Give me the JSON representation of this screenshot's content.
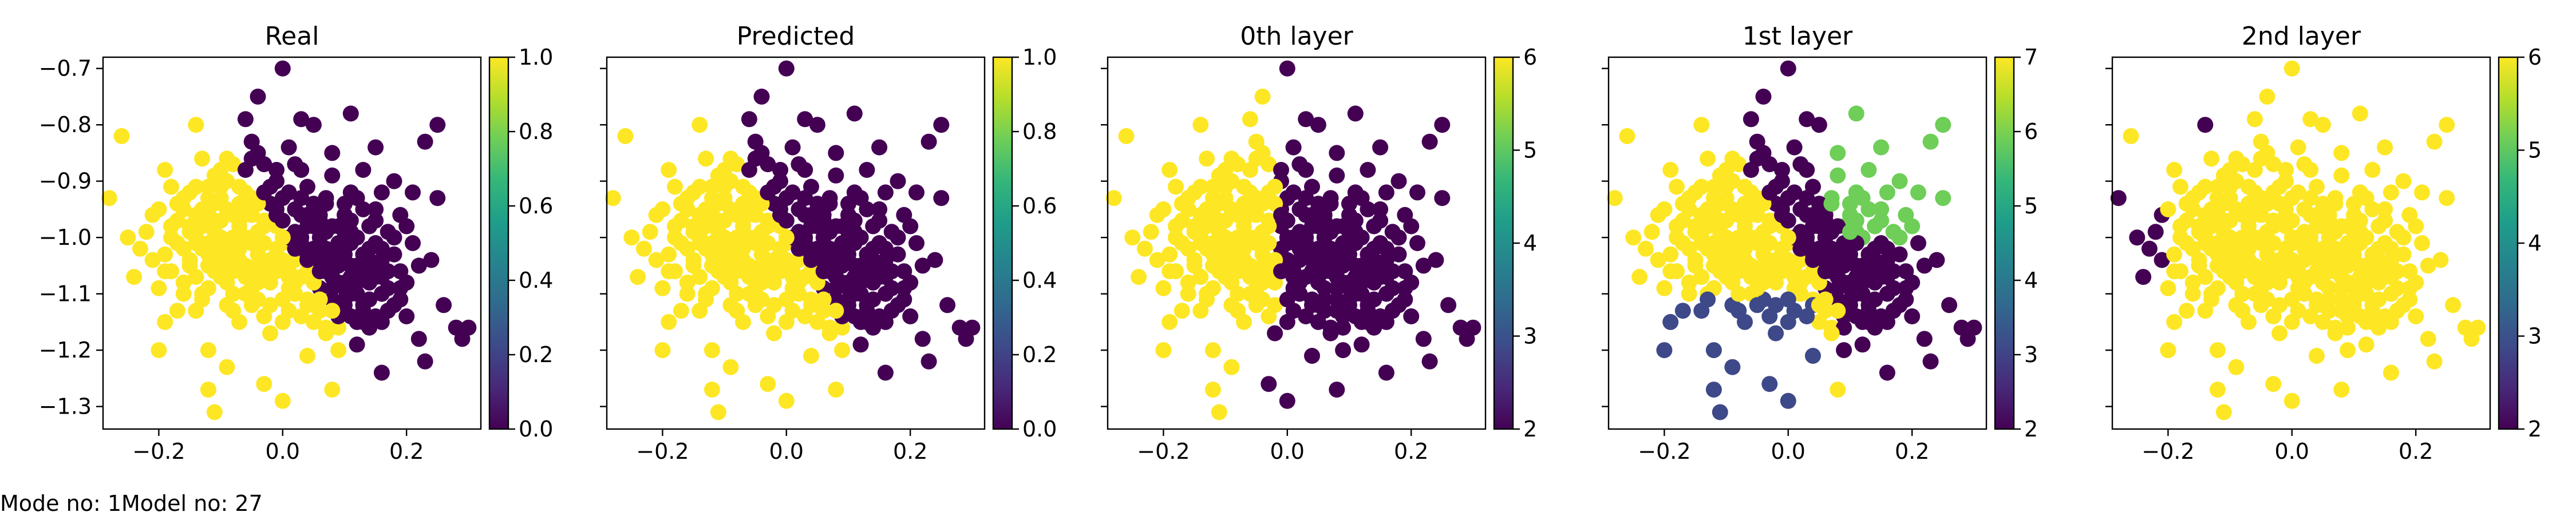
{
  "footer": {
    "mode": "Mode no: 1",
    "model": "Model no: 27"
  },
  "colors": {
    "viridis": [
      "#440154",
      "#482878",
      "#3e4989",
      "#31688e",
      "#26828e",
      "#1f9e89",
      "#35b779",
      "#6ece58",
      "#b5de2b",
      "#fde725"
    ]
  },
  "chart_data": [
    {
      "type": "scatter",
      "title": "Real",
      "xlim": [
        -0.29,
        0.32
      ],
      "ylim": [
        -1.34,
        -0.68
      ],
      "xticks": [
        -0.2,
        0.0,
        0.2
      ],
      "xtick_labels": [
        "−0.2",
        "0.0",
        "0.2"
      ],
      "yticks": [
        -0.7,
        -0.8,
        -0.9,
        -1.0,
        -1.1,
        -1.2,
        -1.3
      ],
      "ytick_labels": [
        "−0.7",
        "−0.8",
        "−0.9",
        "−1.0",
        "−1.1",
        "−1.2",
        "−1.3"
      ],
      "colorbar": {
        "range": [
          0,
          1
        ],
        "ticks": [
          0.0,
          0.2,
          0.4,
          0.6,
          0.8,
          1.0
        ],
        "tick_labels": [
          "0.0",
          "0.2",
          "0.4",
          "0.6",
          "0.8",
          "1.0"
        ]
      },
      "mode": "binary",
      "grid": false,
      "legend": "none"
    },
    {
      "type": "scatter",
      "title": "Predicted",
      "xlim": [
        -0.29,
        0.32
      ],
      "ylim": [
        -1.34,
        -0.68
      ],
      "xticks": [
        -0.2,
        0.0,
        0.2
      ],
      "xtick_labels": [
        "−0.2",
        "0.0",
        "0.2"
      ],
      "yticks": [
        -0.7,
        -0.8,
        -0.9,
        -1.0,
        -1.1,
        -1.2,
        -1.3
      ],
      "ytick_labels": [],
      "colorbar": {
        "range": [
          0,
          1
        ],
        "ticks": [
          0.0,
          0.2,
          0.4,
          0.6,
          0.8,
          1.0
        ],
        "tick_labels": [
          "0.0",
          "0.2",
          "0.4",
          "0.6",
          "0.8",
          "1.0"
        ]
      },
      "mode": "binary",
      "grid": false,
      "legend": "none"
    },
    {
      "type": "scatter",
      "title": "0th layer",
      "xlim": [
        -0.29,
        0.32
      ],
      "ylim": [
        -1.34,
        -0.68
      ],
      "xticks": [
        -0.2,
        0.0,
        0.2
      ],
      "xtick_labels": [
        "−0.2",
        "0.0",
        "0.2"
      ],
      "yticks": [
        -0.7,
        -0.8,
        -0.9,
        -1.0,
        -1.1,
        -1.2,
        -1.3
      ],
      "ytick_labels": [],
      "colorbar": {
        "range": [
          2,
          6
        ],
        "ticks": [
          2,
          3,
          4,
          5,
          6
        ],
        "tick_labels": [
          "2",
          "3",
          "4",
          "5",
          "6"
        ]
      },
      "mode": "layer0",
      "grid": false,
      "legend": "none"
    },
    {
      "type": "scatter",
      "title": "1st layer",
      "xlim": [
        -0.29,
        0.32
      ],
      "ylim": [
        -1.34,
        -0.68
      ],
      "xticks": [
        -0.2,
        0.0,
        0.2
      ],
      "xtick_labels": [
        "−0.2",
        "0.0",
        "0.2"
      ],
      "yticks": [
        -0.7,
        -0.8,
        -0.9,
        -1.0,
        -1.1,
        -1.2,
        -1.3
      ],
      "ytick_labels": [],
      "colorbar": {
        "range": [
          2,
          7
        ],
        "ticks": [
          2,
          3,
          4,
          5,
          6,
          7
        ],
        "tick_labels": [
          "2",
          "3",
          "4",
          "5",
          "6",
          "7"
        ]
      },
      "mode": "layer1",
      "grid": false,
      "legend": "none"
    },
    {
      "type": "scatter",
      "title": "2nd layer",
      "xlim": [
        -0.29,
        0.32
      ],
      "ylim": [
        -1.34,
        -0.68
      ],
      "xticks": [
        -0.2,
        0.0,
        0.2
      ],
      "xtick_labels": [
        "−0.2",
        "0.0",
        "0.2"
      ],
      "yticks": [
        -0.7,
        -0.8,
        -0.9,
        -1.0,
        -1.1,
        -1.2,
        -1.3
      ],
      "ytick_labels": [],
      "colorbar": {
        "range": [
          2,
          6
        ],
        "ticks": [
          2,
          3,
          4,
          5,
          6
        ],
        "tick_labels": [
          "2",
          "3",
          "4",
          "5",
          "6"
        ]
      },
      "mode": "layer2",
      "grid": false,
      "legend": "none"
    }
  ],
  "points": [
    [
      -0.0,
      -0.7
    ],
    [
      -0.04,
      -0.75
    ],
    [
      0.11,
      -0.78
    ],
    [
      0.05,
      -0.8
    ],
    [
      -0.14,
      -0.8
    ],
    [
      0.25,
      -0.8
    ],
    [
      -0.26,
      -0.82
    ],
    [
      0.23,
      -0.83
    ],
    [
      0.15,
      -0.84
    ],
    [
      -0.05,
      -0.86
    ],
    [
      0.02,
      -0.87
    ],
    [
      -0.1,
      -0.88
    ],
    [
      0.08,
      -0.89
    ],
    [
      0.18,
      -0.9
    ],
    [
      -0.18,
      -0.91
    ],
    [
      0.11,
      -0.92
    ],
    [
      0.21,
      -0.92
    ],
    [
      -0.28,
      -0.93
    ],
    [
      0.0,
      -0.93
    ],
    [
      0.25,
      -0.93
    ],
    [
      -0.06,
      -0.95
    ],
    [
      0.15,
      -0.95
    ],
    [
      -0.21,
      -0.96
    ],
    [
      0.06,
      -0.97
    ],
    [
      -0.15,
      -0.98
    ],
    [
      0.2,
      -0.98
    ],
    [
      0.11,
      -0.99
    ],
    [
      -0.25,
      -1.0
    ],
    [
      0.0,
      -1.01
    ],
    [
      0.16,
      -1.02
    ],
    [
      -0.08,
      -1.03
    ],
    [
      0.24,
      -1.04
    ],
    [
      0.06,
      -1.05
    ],
    [
      -0.19,
      -1.06
    ],
    [
      0.12,
      -1.07
    ],
    [
      -0.04,
      -1.08
    ],
    [
      0.19,
      -1.09
    ],
    [
      -0.13,
      -1.1
    ],
    [
      0.04,
      -1.11
    ],
    [
      0.26,
      -1.12
    ],
    [
      -0.08,
      -1.13
    ],
    [
      0.15,
      -1.14
    ],
    [
      -0.19,
      -1.15
    ],
    [
      0.07,
      -1.16
    ],
    [
      0.28,
      -1.16
    ],
    [
      -0.02,
      -1.17
    ],
    [
      0.22,
      -1.18
    ],
    [
      0.12,
      -1.19
    ],
    [
      -0.12,
      -1.2
    ],
    [
      -0.2,
      -1.2
    ],
    [
      0.04,
      -1.21
    ],
    [
      0.23,
      -1.22
    ],
    [
      -0.09,
      -1.23
    ],
    [
      0.16,
      -1.24
    ],
    [
      -0.03,
      -1.26
    ],
    [
      0.08,
      -1.27
    ],
    [
      -0.12,
      -1.27
    ],
    [
      0.0,
      -1.29
    ],
    [
      -0.11,
      -1.31
    ],
    [
      0.3,
      -1.16
    ],
    [
      0.29,
      -1.18
    ],
    [
      -0.05,
      -1.0
    ],
    [
      0.03,
      -0.96
    ],
    [
      -0.1,
      -0.93
    ],
    [
      0.09,
      -1.01
    ],
    [
      -0.02,
      -1.05
    ],
    [
      0.13,
      -1.03
    ],
    [
      -0.07,
      -0.91
    ],
    [
      0.01,
      -0.84
    ],
    [
      -0.13,
      -0.86
    ],
    [
      0.07,
      -0.93
    ],
    [
      0.17,
      -1.06
    ],
    [
      -0.16,
      -1.02
    ],
    [
      0.1,
      -1.12
    ],
    [
      -0.03,
      -0.97
    ],
    [
      0.04,
      -1.06
    ],
    [
      -0.09,
      -1.08
    ],
    [
      0.21,
      -1.01
    ],
    [
      -0.22,
      -0.99
    ],
    [
      0.13,
      -0.88
    ],
    [
      -0.07,
      -1.15
    ],
    [
      0.01,
      -1.13
    ],
    [
      0.1,
      -0.96
    ],
    [
      -0.17,
      -0.94
    ],
    [
      0.06,
      -1.09
    ],
    [
      -0.01,
      -0.9
    ],
    [
      0.18,
      -1.12
    ],
    [
      -0.14,
      -1.13
    ],
    [
      0.09,
      -1.2
    ],
    [
      -0.05,
      -0.83
    ],
    [
      0.03,
      -0.79
    ],
    [
      -0.11,
      -0.97
    ],
    [
      0.14,
      -0.98
    ],
    [
      -0.04,
      -1.11
    ],
    [
      0.08,
      -0.85
    ],
    [
      -0.19,
      -0.88
    ],
    [
      0.2,
      -1.08
    ],
    [
      -0.24,
      -1.07
    ],
    [
      0.05,
      -1.02
    ],
    [
      -0.06,
      -1.05
    ],
    [
      0.12,
      -1.1
    ],
    [
      -0.15,
      -1.05
    ],
    [
      0.02,
      -0.99
    ],
    [
      -0.08,
      -0.87
    ],
    [
      0.16,
      -0.92
    ],
    [
      -0.12,
      -1.01
    ],
    [
      0.11,
      -1.05
    ],
    [
      -0.02,
      -1.08
    ],
    [
      0.07,
      -0.99
    ],
    [
      -0.09,
      -0.95
    ],
    [
      0.04,
      -0.91
    ],
    [
      -0.01,
      -1.02
    ],
    [
      0.19,
      -0.96
    ],
    [
      -0.2,
      -1.09
    ],
    [
      0.14,
      -1.16
    ],
    [
      -0.06,
      -0.79
    ],
    [
      0.0,
      -1.15
    ],
    [
      -0.14,
      -0.91
    ],
    [
      0.09,
      -1.16
    ],
    [
      -0.03,
      -0.87
    ],
    [
      0.06,
      -1.13
    ],
    [
      -0.1,
      -1.04
    ],
    [
      0.15,
      -1.07
    ],
    [
      -0.17,
      -0.97
    ],
    [
      0.02,
      -1.04
    ],
    [
      -0.05,
      -0.93
    ],
    [
      0.12,
      -1.0
    ],
    [
      -0.23,
      -1.02
    ],
    [
      0.08,
      -1.07
    ],
    [
      -0.07,
      -0.98
    ],
    [
      0.03,
      -0.88
    ],
    [
      -0.12,
      -1.09
    ],
    [
      0.17,
      -0.99
    ],
    [
      -0.01,
      -0.95
    ],
    [
      0.05,
      -0.94
    ],
    [
      -0.09,
      -1.12
    ],
    [
      0.22,
      -1.05
    ],
    [
      -0.16,
      -1.1
    ],
    [
      0.1,
      -1.09
    ],
    [
      -0.04,
      -1.03
    ],
    [
      0.01,
      -1.09
    ],
    [
      -0.13,
      -0.95
    ],
    [
      0.14,
      -1.11
    ],
    [
      -0.06,
      -1.1
    ],
    [
      0.07,
      -1.04
    ],
    [
      -0.18,
      -1.0
    ],
    [
      0.04,
      -0.98
    ],
    [
      -0.11,
      -0.89
    ],
    [
      0.13,
      -1.15
    ],
    [
      -0.02,
      -1.12
    ],
    [
      0.09,
      -0.98
    ],
    [
      -0.08,
      -1.06
    ],
    [
      0.18,
      -1.03
    ],
    [
      -0.15,
      -0.99
    ],
    [
      0.01,
      -0.92
    ],
    [
      -0.06,
      -0.88
    ],
    [
      0.11,
      -1.14
    ],
    [
      -0.1,
      -1.0
    ],
    [
      0.06,
      -1.0
    ],
    [
      -0.03,
      -1.07
    ],
    [
      0.16,
      -1.1
    ],
    [
      -0.2,
      -0.95
    ],
    [
      0.02,
      -1.1
    ],
    [
      -0.07,
      -1.02
    ],
    [
      0.08,
      -1.11
    ],
    [
      -0.12,
      -0.93
    ],
    [
      0.13,
      -0.95
    ],
    [
      -0.04,
      -0.85
    ],
    [
      0.05,
      -1.15
    ],
    [
      -0.14,
      -1.07
    ],
    [
      0.1,
      -1.03
    ],
    [
      -0.01,
      -0.98
    ],
    [
      0.2,
      -1.14
    ],
    [
      -0.21,
      -1.04
    ],
    [
      0.03,
      -1.14
    ],
    [
      -0.09,
      -1.01
    ],
    [
      0.15,
      -1.01
    ],
    [
      -0.05,
      -0.96
    ],
    [
      0.07,
      -1.17
    ],
    [
      -0.17,
      -1.13
    ],
    [
      0.12,
      -0.93
    ],
    [
      -0.02,
      -0.94
    ],
    [
      0.04,
      -1.03
    ],
    [
      -0.11,
      -1.06
    ],
    [
      0.09,
      -1.14
    ],
    [
      -0.07,
      -0.94
    ],
    [
      0.17,
      -1.09
    ],
    [
      -0.13,
      -0.98
    ],
    [
      0.01,
      -1.06
    ],
    [
      -0.04,
      -0.99
    ],
    [
      0.06,
      -0.96
    ],
    [
      -0.15,
      -0.92
    ],
    [
      0.14,
      -1.04
    ],
    [
      -0.08,
      -1.1
    ],
    [
      0.11,
      -1.07
    ],
    [
      -0.03,
      -1.14
    ],
    [
      0.02,
      -0.95
    ],
    [
      -0.1,
      -0.91
    ],
    [
      0.19,
      -1.06
    ],
    [
      -0.18,
      -1.06
    ],
    [
      0.08,
      -0.98
    ],
    [
      -0.06,
      -1.07
    ],
    [
      0.13,
      -1.12
    ],
    [
      -0.01,
      -0.88
    ],
    [
      0.05,
      -1.08
    ],
    [
      -0.12,
      -1.03
    ],
    [
      0.1,
      -0.94
    ],
    [
      -0.05,
      -1.12
    ],
    [
      0.16,
      -1.15
    ],
    [
      -0.19,
      -1.03
    ],
    [
      0.03,
      -1.0
    ],
    [
      -0.08,
      -0.96
    ],
    [
      0.07,
      -1.06
    ],
    [
      -0.14,
      -1.01
    ],
    [
      0.12,
      -1.08
    ],
    [
      0.0,
      -1.04
    ],
    [
      -0.09,
      -0.86
    ],
    [
      0.15,
      -0.97
    ],
    [
      -0.03,
      -1.01
    ],
    [
      0.04,
      -1.12
    ],
    [
      -0.16,
      -0.95
    ],
    [
      0.09,
      -1.05
    ],
    [
      -0.06,
      -0.92
    ],
    [
      0.18,
      -1.0
    ],
    [
      -0.11,
      -0.99
    ],
    [
      0.06,
      -1.11
    ],
    [
      -0.02,
      -0.91
    ],
    [
      0.11,
      -1.01
    ],
    [
      -0.13,
      -1.11
    ],
    [
      0.01,
      -1.0
    ],
    [
      -0.07,
      -1.04
    ],
    [
      0.14,
      -1.08
    ],
    [
      -0.04,
      -0.94
    ],
    [
      0.08,
      -1.09
    ],
    [
      -0.1,
      -0.97
    ],
    [
      0.03,
      -1.07
    ],
    [
      -0.15,
      -1.04
    ],
    [
      0.1,
      -1.11
    ],
    [
      -0.0,
      -0.97
    ],
    [
      0.05,
      -0.98
    ],
    [
      -0.08,
      -1.0
    ],
    [
      0.16,
      -1.04
    ],
    [
      -0.12,
      -0.96
    ],
    [
      0.07,
      -1.02
    ],
    [
      -0.05,
      -1.09
    ],
    [
      0.12,
      -1.05
    ],
    [
      -0.17,
      -1.01
    ],
    [
      0.02,
      -1.02
    ],
    [
      -0.03,
      -0.92
    ],
    [
      0.09,
      -1.02
    ],
    [
      -0.1,
      -1.07
    ],
    [
      0.04,
      -0.96
    ],
    [
      0.13,
      -1.13
    ],
    [
      -0.06,
      -1.0
    ],
    [
      0.0,
      -1.11
    ],
    [
      -0.14,
      -0.96
    ],
    [
      0.11,
      -1.1
    ],
    [
      -0.02,
      -1.04
    ],
    [
      0.06,
      -1.06
    ],
    [
      -0.09,
      -0.9
    ],
    [
      0.17,
      -1.13
    ],
    [
      -0.12,
      -1.05
    ],
    [
      0.03,
      -0.93
    ],
    [
      -0.05,
      -1.06
    ],
    [
      0.08,
      -1.03
    ],
    [
      -0.16,
      -1.08
    ],
    [
      0.14,
      -1.02
    ],
    [
      -0.01,
      -1.06
    ],
    [
      0.05,
      -1.12
    ],
    [
      -0.11,
      -0.94
    ],
    [
      0.1,
      -0.99
    ],
    [
      -0.07,
      -0.97
    ],
    [
      0.19,
      -1.11
    ],
    [
      -0.13,
      -1.02
    ],
    [
      0.02,
      -1.08
    ],
    [
      -0.04,
      -1.05
    ],
    [
      0.12,
      -1.15
    ],
    [
      -0.18,
      -0.98
    ],
    [
      0.07,
      -0.94
    ],
    [
      0.0,
      -1.0
    ],
    [
      -0.08,
      -1.13
    ],
    [
      0.15,
      -1.05
    ],
    [
      -0.03,
      -0.98
    ],
    [
      0.09,
      -1.08
    ],
    [
      -0.14,
      -1.0
    ],
    [
      0.04,
      -1.04
    ],
    [
      -0.06,
      -0.95
    ],
    [
      0.11,
      -0.97
    ],
    [
      -0.1,
      -1.02
    ],
    [
      0.01,
      -1.07
    ],
    [
      0.16,
      -1.07
    ],
    [
      -0.05,
      -1.01
    ],
    [
      0.06,
      -1.04
    ],
    [
      -0.12,
      -0.91
    ],
    [
      0.13,
      -1.06
    ],
    [
      -0.01,
      -0.96
    ],
    [
      0.08,
      -1.13
    ],
    [
      -0.09,
      -1.05
    ],
    [
      0.03,
      -1.01
    ],
    [
      -0.16,
      -0.93
    ],
    [
      0.1,
      -1.08
    ]
  ]
}
